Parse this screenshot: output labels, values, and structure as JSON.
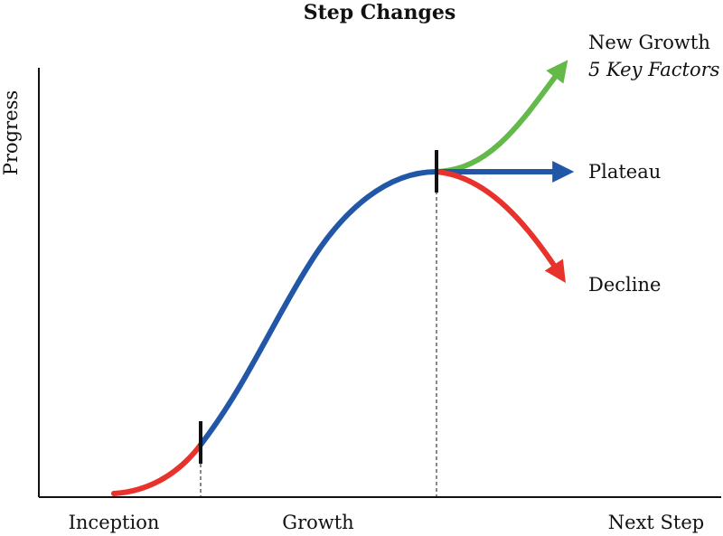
{
  "title": "Step Changes",
  "y_axis_label": "Progress",
  "x_labels": {
    "inception": "Inception",
    "growth": "Growth",
    "next_step": "Next Step"
  },
  "outcomes": {
    "new_growth": "New Growth",
    "new_growth_sub": "5 Key Factors",
    "plateau": "Plateau",
    "decline": "Decline"
  },
  "colors": {
    "inception_curve": "#e8322c",
    "growth_curve": "#2256a6",
    "new_growth_arrow": "#63b94a",
    "plateau_arrow": "#2256a6",
    "decline_arrow": "#e8322c",
    "axis": "#111111"
  }
}
